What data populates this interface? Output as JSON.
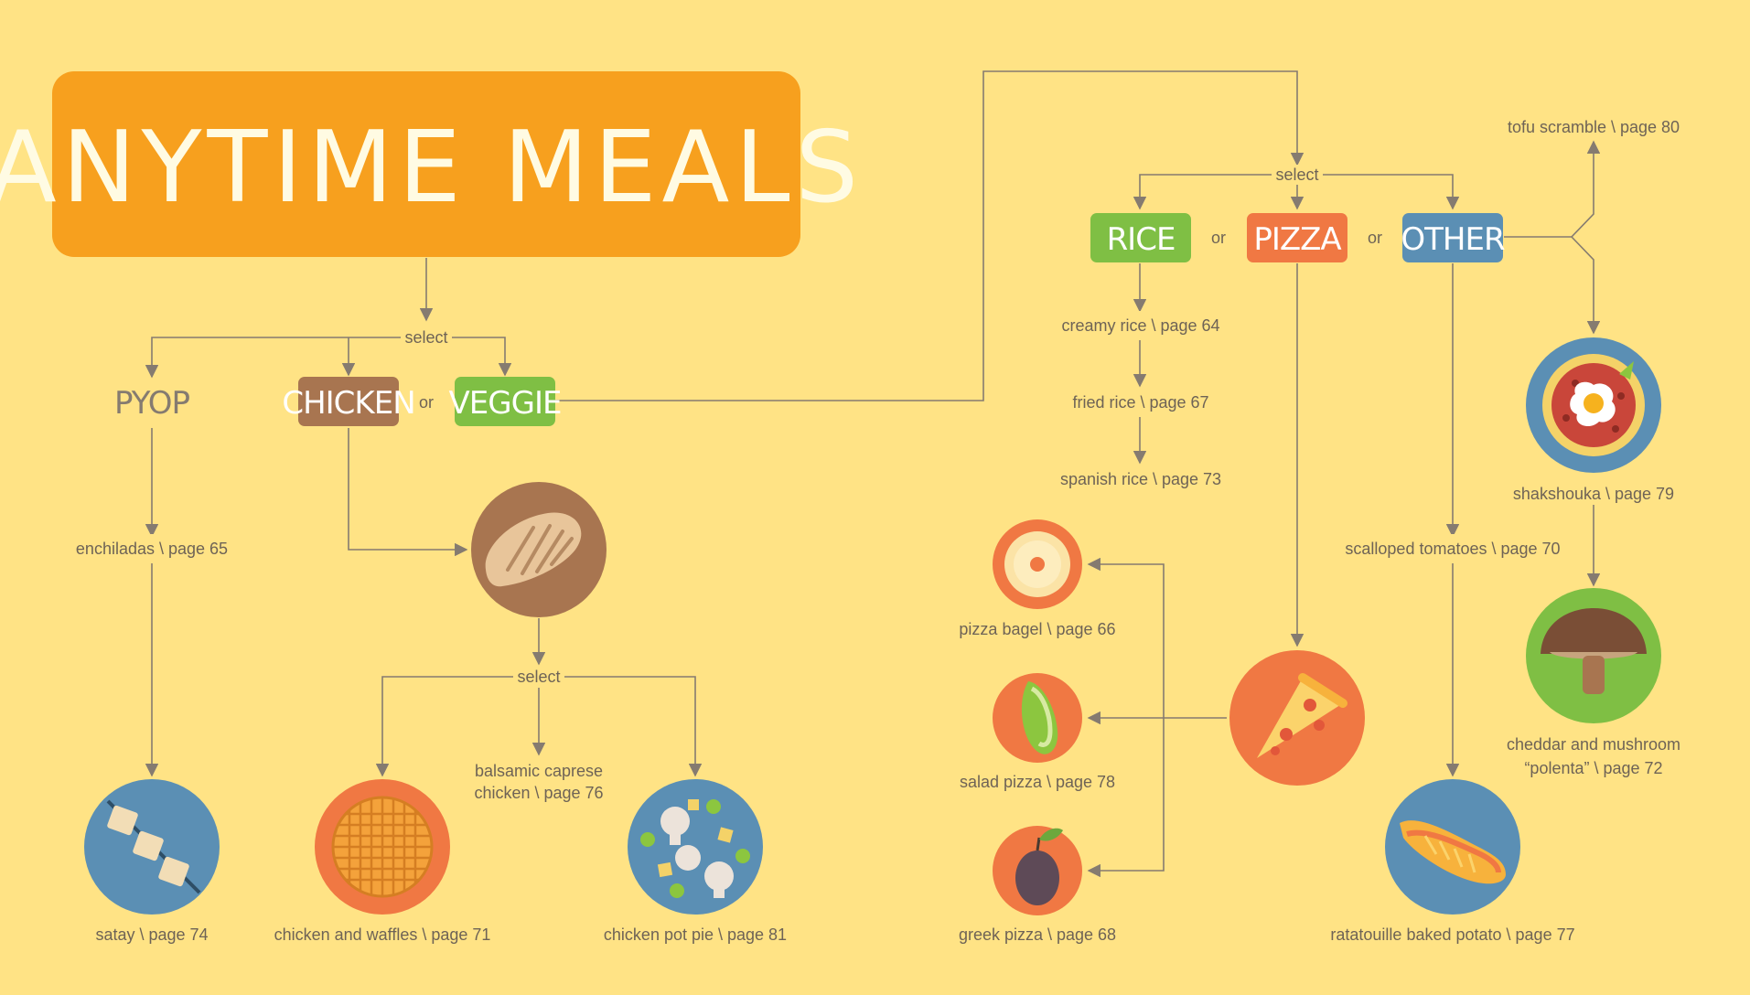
{
  "title": "ANYTIME MEALS",
  "connectors": {
    "select": "select",
    "or": "or"
  },
  "left_branch": {
    "options": [
      "PYOP",
      "CHICKEN",
      "VEGGIE"
    ],
    "pyop_recipes": [
      "enchiladas \\ page 65",
      "satay \\ page 74"
    ],
    "chicken_recipes": [
      "chicken and waffles \\ page 71",
      "balsamic caprese",
      "chicken \\ page 76",
      "chicken pot pie \\ page 81"
    ]
  },
  "right_branch": {
    "options": [
      "RICE",
      "PIZZA",
      "OTHER"
    ],
    "rice_recipes": [
      "creamy rice \\ page 64",
      "fried rice \\ page 67",
      "spanish rice \\ page 73"
    ],
    "pizza_recipes": [
      "pizza bagel \\ page 66",
      "salad pizza \\ page 78",
      "greek pizza \\ page 68"
    ],
    "other_recipes": [
      "tofu scramble \\ page 80",
      "shakshouka \\ page 79",
      "cheddar and mushroom",
      "“polenta” \\ page 72",
      "scalloped tomatoes \\ page 70",
      "ratatouille baked potato \\ page 77"
    ]
  },
  "colors": {
    "background": "#FFE385",
    "title_box": "#F7A01E",
    "chicken": "#A87550",
    "veggie": "#7FBF44",
    "rice": "#7FBF44",
    "pizza": "#F07843",
    "other": "#5B8FB4",
    "line": "#857B70"
  },
  "icons": [
    "chicken-breast-icon",
    "skewer-icon",
    "waffle-icon",
    "pot-pie-icon",
    "bagel-icon",
    "avocado-slice-icon",
    "olive-icon",
    "pizza-slice-icon",
    "shakshouka-icon",
    "mushroom-icon",
    "baked-potato-icon"
  ]
}
